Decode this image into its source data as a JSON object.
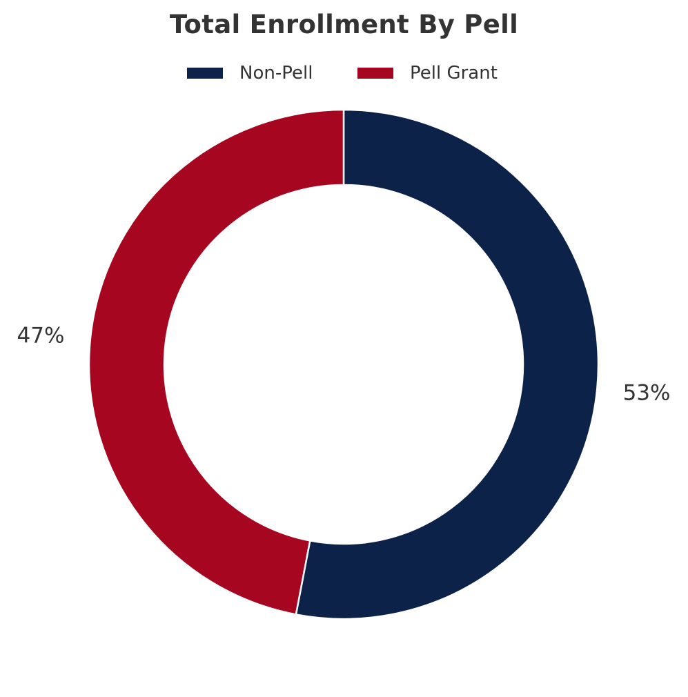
{
  "chart_data": {
    "type": "pie",
    "variant": "donut",
    "title": "Total Enrollment By Pell",
    "legend_position": "top-center",
    "slices": [
      {
        "name": "Non-Pell",
        "value": 53,
        "label": "53%",
        "color": "#0d2249"
      },
      {
        "name": "Pell Grant",
        "value": 47,
        "label": "47%",
        "color": "#a70621"
      }
    ],
    "start_angle_deg": 90,
    "direction": "clockwise",
    "legend_order": [
      "Non-Pell",
      "Pell Grant"
    ]
  }
}
